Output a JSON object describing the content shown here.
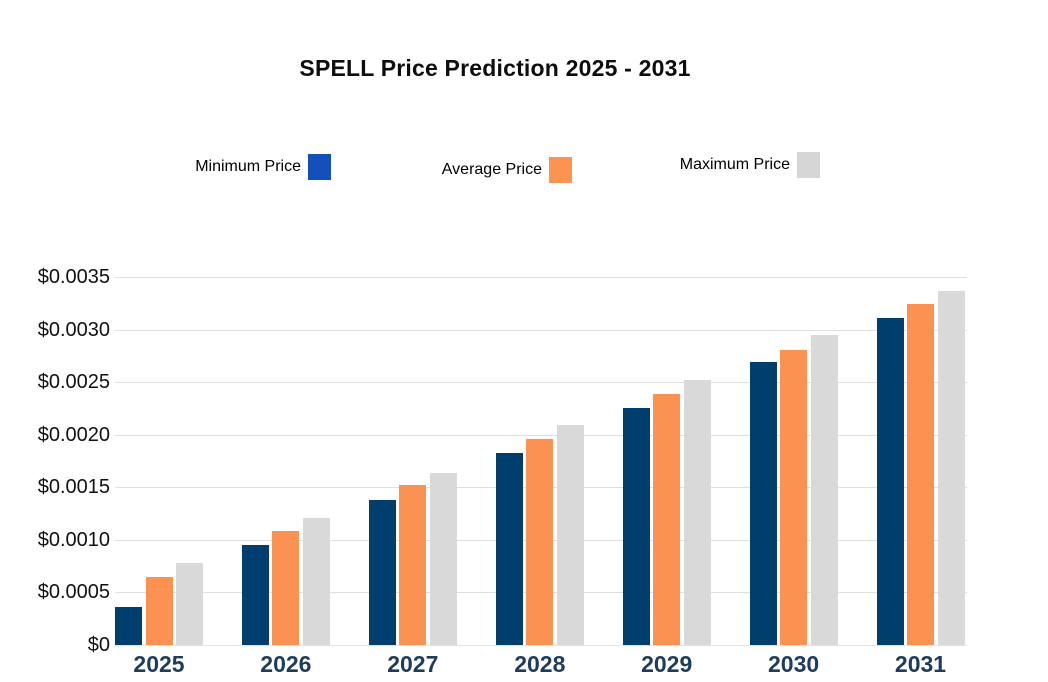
{
  "legend": {
    "items": [
      {
        "label": "Minimum Price",
        "swatch": "#1450bc"
      },
      {
        "label": "Average Price",
        "swatch": "#fc9351"
      },
      {
        "label": "Maximum Price",
        "swatch": "#d6d6d6"
      }
    ]
  },
  "chart_data": {
    "type": "bar",
    "title": "SPELL Price Prediction 2025 - 2031",
    "categories": [
      "2025",
      "2026",
      "2027",
      "2028",
      "2029",
      "2030",
      "2031"
    ],
    "series": [
      {
        "name": "Minimum Price",
        "color": "#003e6e",
        "values": [
          0.00036,
          0.00095,
          0.00138,
          0.00183,
          0.00225,
          0.00269,
          0.00311
        ]
      },
      {
        "name": "Average Price",
        "color": "#fc9251",
        "values": [
          0.00065,
          0.00108,
          0.00152,
          0.00196,
          0.00239,
          0.00281,
          0.00324
        ]
      },
      {
        "name": "Maximum Price",
        "color": "#d9d9d9",
        "values": [
          0.00078,
          0.00121,
          0.00164,
          0.00209,
          0.00252,
          0.00295,
          0.00337
        ]
      }
    ],
    "ylim": [
      0,
      0.0035
    ],
    "ytick_step": 0.0005,
    "ytick_labels": [
      "$0",
      "$0.0005",
      "$0.0010",
      "$0.0015",
      "$0.0020",
      "$0.0025",
      "$0.0030",
      "$0.0035"
    ],
    "xlabel": "",
    "ylabel": "",
    "grid": true,
    "legend_position": "top"
  }
}
